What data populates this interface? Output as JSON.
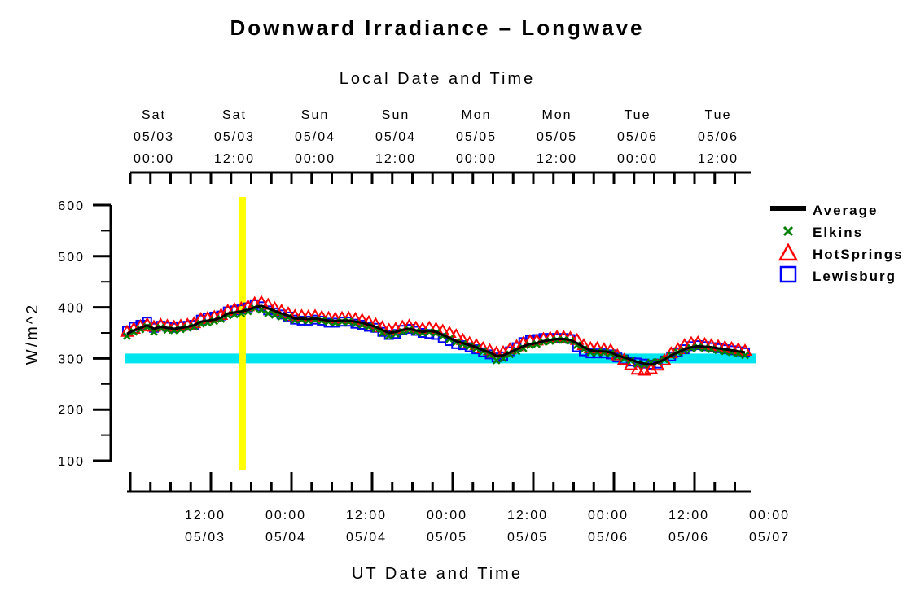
{
  "chart_data": {
    "type": "line",
    "title": "Downward Irradiance – Longwave",
    "ylabel": "W/m^2",
    "xlabel_bottom": "UT Date and Time",
    "xlabel_top": "Local Date and Time",
    "ylim": [
      100,
      600
    ],
    "yticks": [
      "100",
      "200",
      "300",
      "400",
      "500",
      "600"
    ],
    "x_unit": "hours since 05/03 00:00 UT",
    "xlim": [
      0,
      92
    ],
    "bottom_ticks": [
      {
        "x": 12,
        "time": "12:00",
        "date": "05/03"
      },
      {
        "x": 24,
        "time": "00:00",
        "date": "05/04"
      },
      {
        "x": 36,
        "time": "12:00",
        "date": "05/04"
      },
      {
        "x": 48,
        "time": "00:00",
        "date": "05/05"
      },
      {
        "x": 60,
        "time": "12:00",
        "date": "05/05"
      },
      {
        "x": 72,
        "time": "00:00",
        "date": "05/06"
      },
      {
        "x": 84,
        "time": "12:00",
        "date": "05/06"
      },
      {
        "x": 96,
        "time": "00:00",
        "date": "05/07"
      }
    ],
    "top_ticks": [
      {
        "x": 4,
        "day": "Sat",
        "date": "05/03",
        "time": "00:00"
      },
      {
        "x": 16,
        "day": "Sat",
        "date": "05/03",
        "time": "12:00"
      },
      {
        "x": 28,
        "day": "Sun",
        "date": "05/04",
        "time": "00:00"
      },
      {
        "x": 40,
        "day": "Sun",
        "date": "05/04",
        "time": "12:00"
      },
      {
        "x": 52,
        "day": "Mon",
        "date": "05/05",
        "time": "00:00"
      },
      {
        "x": 64,
        "day": "Mon",
        "date": "05/05",
        "time": "12:00"
      },
      {
        "x": 76,
        "day": "Tue",
        "date": "05/06",
        "time": "00:00"
      },
      {
        "x": 88,
        "day": "Tue",
        "date": "05/06",
        "time": "12:00"
      }
    ],
    "reference_line": {
      "y": 300,
      "color": "#00e5ee"
    },
    "current_time_marker": {
      "x": 17.2,
      "color": "#ffff00"
    },
    "legend": [
      {
        "name": "Average",
        "color": "#000000",
        "marker": "line"
      },
      {
        "name": "Elkins",
        "color": "#008000",
        "marker": "x"
      },
      {
        "name": "HotSprings",
        "color": "#ff0000",
        "marker": "triangle"
      },
      {
        "name": "Lewisburg",
        "color": "#0000ff",
        "marker": "square"
      }
    ],
    "x": [
      0,
      1,
      2,
      3,
      4,
      5,
      6,
      7,
      8,
      9,
      10,
      11,
      12,
      13,
      14,
      15,
      16,
      17,
      18,
      19,
      20,
      21,
      22,
      23,
      24,
      25,
      26,
      27,
      28,
      29,
      30,
      31,
      32,
      33,
      34,
      35,
      36,
      37,
      38,
      39,
      40,
      41,
      42,
      43,
      44,
      45,
      46,
      47,
      48,
      49,
      50,
      51,
      52,
      53,
      54,
      55,
      56,
      57,
      58,
      59,
      60,
      61,
      62,
      63,
      64,
      65,
      66,
      67,
      68,
      69,
      70,
      71,
      72,
      73,
      74,
      75,
      76,
      77,
      78,
      79,
      80,
      81,
      82,
      83,
      84,
      85,
      86,
      87,
      88,
      89,
      90,
      91,
      92
    ],
    "series": [
      {
        "name": "Average",
        "values": [
          348,
          355,
          360,
          365,
          358,
          362,
          360,
          358,
          360,
          362,
          365,
          372,
          374,
          376,
          380,
          388,
          390,
          392,
          395,
          400,
          403,
          398,
          393,
          388,
          384,
          378,
          378,
          377,
          378,
          376,
          374,
          373,
          374,
          374,
          372,
          370,
          366,
          362,
          356,
          350,
          352,
          356,
          358,
          355,
          352,
          354,
          352,
          346,
          340,
          334,
          330,
          326,
          322,
          316,
          312,
          305,
          306,
          312,
          318,
          324,
          328,
          330,
          334,
          336,
          338,
          338,
          336,
          330,
          322,
          316,
          314,
          314,
          312,
          306,
          302,
          298,
          293,
          290,
          288,
          292,
          298,
          306,
          312,
          318,
          322,
          324,
          323,
          322,
          320,
          318,
          316,
          314,
          312
        ]
      },
      {
        "name": "Elkins",
        "values": [
          344,
          352,
          357,
          362,
          352,
          360,
          356,
          355,
          357,
          360,
          362,
          368,
          370,
          373,
          377,
          384,
          386,
          388,
          392,
          398,
          395,
          388,
          385,
          382,
          380,
          375,
          376,
          374,
          376,
          374,
          372,
          370,
          372,
          372,
          368,
          366,
          362,
          358,
          350,
          344,
          348,
          352,
          356,
          352,
          350,
          352,
          350,
          344,
          338,
          332,
          328,
          324,
          320,
          314,
          308,
          296,
          300,
          308,
          314,
          320,
          326,
          328,
          332,
          334,
          336,
          336,
          334,
          326,
          318,
          312,
          312,
          312,
          310,
          304,
          300,
          296,
          290,
          288,
          292,
          294,
          298,
          306,
          312,
          316,
          320,
          322,
          320,
          318,
          316,
          314,
          312,
          310,
          306
        ]
      },
      {
        "name": "HotSprings",
        "values": [
          352,
          358,
          363,
          367,
          362,
          366,
          364,
          362,
          364,
          366,
          369,
          377,
          379,
          381,
          385,
          393,
          396,
          398,
          402,
          408,
          410,
          405,
          398,
          393,
          388,
          383,
          383,
          382,
          383,
          381,
          379,
          378,
          379,
          379,
          377,
          375,
          371,
          367,
          361,
          356,
          358,
          362,
          364,
          360,
          358,
          360,
          358,
          354,
          350,
          345,
          336,
          330,
          326,
          320,
          316,
          311,
          312,
          318,
          324,
          330,
          334,
          335,
          338,
          340,
          342,
          342,
          340,
          336,
          326,
          320,
          320,
          318,
          316,
          306,
          297,
          287,
          278,
          276,
          279,
          286,
          296,
          310,
          318,
          326,
          330,
          331,
          328,
          326,
          324,
          322,
          320,
          318,
          315
        ]
      },
      {
        "name": "Lewisburg",
        "values": [
          354,
          362,
          366,
          372,
          360,
          364,
          362,
          360,
          363,
          364,
          366,
          376,
          380,
          382,
          384,
          392,
          394,
          396,
          400,
          406,
          402,
          394,
          390,
          386,
          382,
          376,
          374,
          374,
          376,
          374,
          370,
          370,
          372,
          372,
          368,
          366,
          362,
          360,
          352,
          346,
          348,
          356,
          358,
          354,
          350,
          348,
          346,
          340,
          334,
          328,
          326,
          322,
          318,
          312,
          308,
          302,
          304,
          314,
          322,
          332,
          336,
          338,
          340,
          340,
          340,
          340,
          338,
          322,
          314,
          310,
          310,
          310,
          308,
          302,
          298,
          294,
          292,
          290,
          288,
          290,
          296,
          304,
          312,
          318,
          324,
          326,
          324,
          322,
          320,
          318,
          316,
          314,
          312
        ]
      }
    ]
  }
}
